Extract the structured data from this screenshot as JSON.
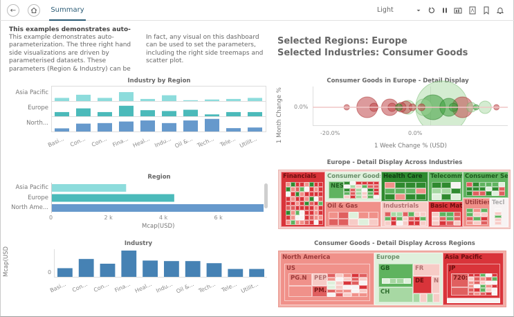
{
  "topbar": {
    "back_icon": "arrow-left-icon",
    "home_icon": "home-icon",
    "tab_label": "Summary",
    "theme_value": "Light",
    "icons": [
      "chevron-down-icon",
      "refresh-icon",
      "pause-icon",
      "snapshot-icon",
      "pdf-icon",
      "bookmark-icon",
      "bell-icon"
    ]
  },
  "description": {
    "title": "This examples demonstrates auto-",
    "para1": "This example demonstrates auto-parameterization. The three right hand side visualizations are driven by parameterised datasets. These parameters (Region & Industry) can be",
    "para2": "In fact, any visual on this dashboard can be used to set the parameters, including the right side treemaps and scatter plot."
  },
  "selection": {
    "regions_line": "Selected Regions: Europe",
    "industries_line": "Selected Industries: Consumer Goods"
  },
  "colors": {
    "asia_pacific": "#8ddcdc",
    "europe": "#4bbaba",
    "north_america": "#6699cc",
    "industry_bar": "#4682b4",
    "positive": "#2e9a2e",
    "negative": "#d43a3a"
  },
  "chart_data": [
    {
      "type": "bar",
      "title": "Industry by Region",
      "categories": [
        "Basi...",
        "Con...",
        "Con...",
        "Fina...",
        "Heal...",
        "Indu...",
        "Oil &...",
        "Tech...",
        "Tele...",
        "Utilit..."
      ],
      "series": [
        {
          "name": "Asia Pacific",
          "values": [
            0.3,
            0.6,
            0.3,
            0.85,
            0.2,
            0.55,
            0.08,
            0.15,
            0.2,
            0.3
          ]
        },
        {
          "name": "Europe",
          "values": [
            0.4,
            0.75,
            0.4,
            1.0,
            0.58,
            0.5,
            0.62,
            0.18,
            0.4,
            0.4
          ]
        },
        {
          "name": "North...",
          "values": [
            0.3,
            0.75,
            0.8,
            0.95,
            1.05,
            0.8,
            1.05,
            1.2,
            0.32,
            0.38
          ]
        }
      ]
    },
    {
      "type": "bar",
      "title": "Region",
      "orientation": "horizontal",
      "categories": [
        "Asia Pacific",
        "Europe",
        "North Ame..."
      ],
      "values": [
        2700,
        4450,
        7700
      ],
      "xlabel": "Mcap(USD)",
      "xticks": [
        "0",
        "2 k",
        "4 k",
        "6 k"
      ],
      "xlim": [
        0,
        7700
      ]
    },
    {
      "type": "bar",
      "title": "Industry",
      "categories": [
        "Basi...",
        "Con...",
        "Con...",
        "Fina...",
        "Heal...",
        "Indu...",
        "Oil &...",
        "Tech...",
        "Tele...",
        "Utilit..."
      ],
      "values": [
        0.33,
        0.68,
        0.5,
        1.0,
        0.62,
        0.6,
        0.6,
        0.52,
        0.3,
        0.3
      ],
      "ylabel": "Mcap(USD",
      "yticks": [
        "0"
      ]
    },
    {
      "type": "scatter",
      "title": "Consumer Goods in Europe - Detail Display",
      "xlabel": "1 Week Change % (USD)",
      "ylabel": "1 Month Change %",
      "xticks": [
        "-20.0%",
        "0.0%"
      ],
      "yticks": [
        "0.0%"
      ],
      "xlim": [
        -26,
        17
      ],
      "points": [
        {
          "x": -18.5,
          "r": 4,
          "sign": "neg"
        },
        {
          "x": -14.0,
          "r": 15,
          "sign": "neg"
        },
        {
          "x": -12.5,
          "r": 6,
          "sign": "neg"
        },
        {
          "x": -9.0,
          "r": 12,
          "sign": "neg"
        },
        {
          "x": -8.5,
          "r": 6,
          "sign": "neg"
        },
        {
          "x": -7.0,
          "r": 5,
          "sign": "pos"
        },
        {
          "x": -6.5,
          "r": 7,
          "sign": "neg"
        },
        {
          "x": -5.5,
          "r": 9,
          "sign": "neg"
        },
        {
          "x": -5.0,
          "r": 10,
          "sign": "pos-light"
        },
        {
          "x": -4.0,
          "r": 5,
          "sign": "neg"
        },
        {
          "x": -2.0,
          "r": 5,
          "sign": "neg"
        },
        {
          "x": -1.5,
          "r": 12,
          "sign": "pos-light"
        },
        {
          "x": 0.5,
          "r": 18,
          "sign": "pos"
        },
        {
          "x": 2.5,
          "r": 38,
          "sign": "pos-light"
        },
        {
          "x": 4.0,
          "r": 13,
          "sign": "pos"
        },
        {
          "x": 5.0,
          "r": 6,
          "sign": "pos"
        },
        {
          "x": 7.0,
          "r": 15,
          "sign": "neg"
        },
        {
          "x": 9.0,
          "r": 7,
          "sign": "pos-light"
        },
        {
          "x": 10.0,
          "r": 4,
          "sign": "pos"
        },
        {
          "x": 12.0,
          "r": 9,
          "sign": "pos-light"
        },
        {
          "x": 14.5,
          "r": 4,
          "sign": "neg"
        }
      ]
    },
    {
      "type": "heatmap",
      "title": "Europe - Detail Display Across Industries",
      "cells": [
        {
          "label": "Financials",
          "sign": "neg-strong"
        },
        {
          "label": "Consumer Goods",
          "sign": "pos-pale"
        },
        {
          "label": "NES",
          "sign": "pos"
        },
        {
          "label": "Health Care",
          "sign": "pos-strong"
        },
        {
          "label": "Telecommi",
          "sign": "pos"
        },
        {
          "label": "Consumer Se",
          "sign": "pos"
        },
        {
          "label": "Oil & Gas",
          "sign": "neg-light"
        },
        {
          "label": "Industrials",
          "sign": "neg-pale"
        },
        {
          "label": "Basic Mate",
          "sign": "neg-strong"
        },
        {
          "label": "Utilities",
          "sign": "neg-light"
        },
        {
          "label": "Tecl",
          "sign": "neutral"
        }
      ]
    },
    {
      "type": "heatmap",
      "title": "Consumer Goods - Detail Display Across Regions",
      "cells": [
        {
          "label": "North America",
          "sign": "neg-light"
        },
        {
          "label": "US",
          "sign": "neg-light"
        },
        {
          "label": "PG.N",
          "sign": "neg-light"
        },
        {
          "label": "PEP.I",
          "sign": "neg-pale"
        },
        {
          "label": "PM.N",
          "sign": "neg"
        },
        {
          "label": "Europe",
          "sign": "pos-pale"
        },
        {
          "label": "GB",
          "sign": "pos"
        },
        {
          "label": "FR",
          "sign": "neg-pale"
        },
        {
          "label": "DE",
          "sign": "neg-strong"
        },
        {
          "label": "NL",
          "sign": "neg-pale"
        },
        {
          "label": "CH",
          "sign": "pos-light"
        },
        {
          "label": "Asia Pacific",
          "sign": "neg-strong"
        },
        {
          "label": "JP",
          "sign": "neg-strong"
        },
        {
          "label": "720:",
          "sign": "neg"
        }
      ]
    }
  ]
}
